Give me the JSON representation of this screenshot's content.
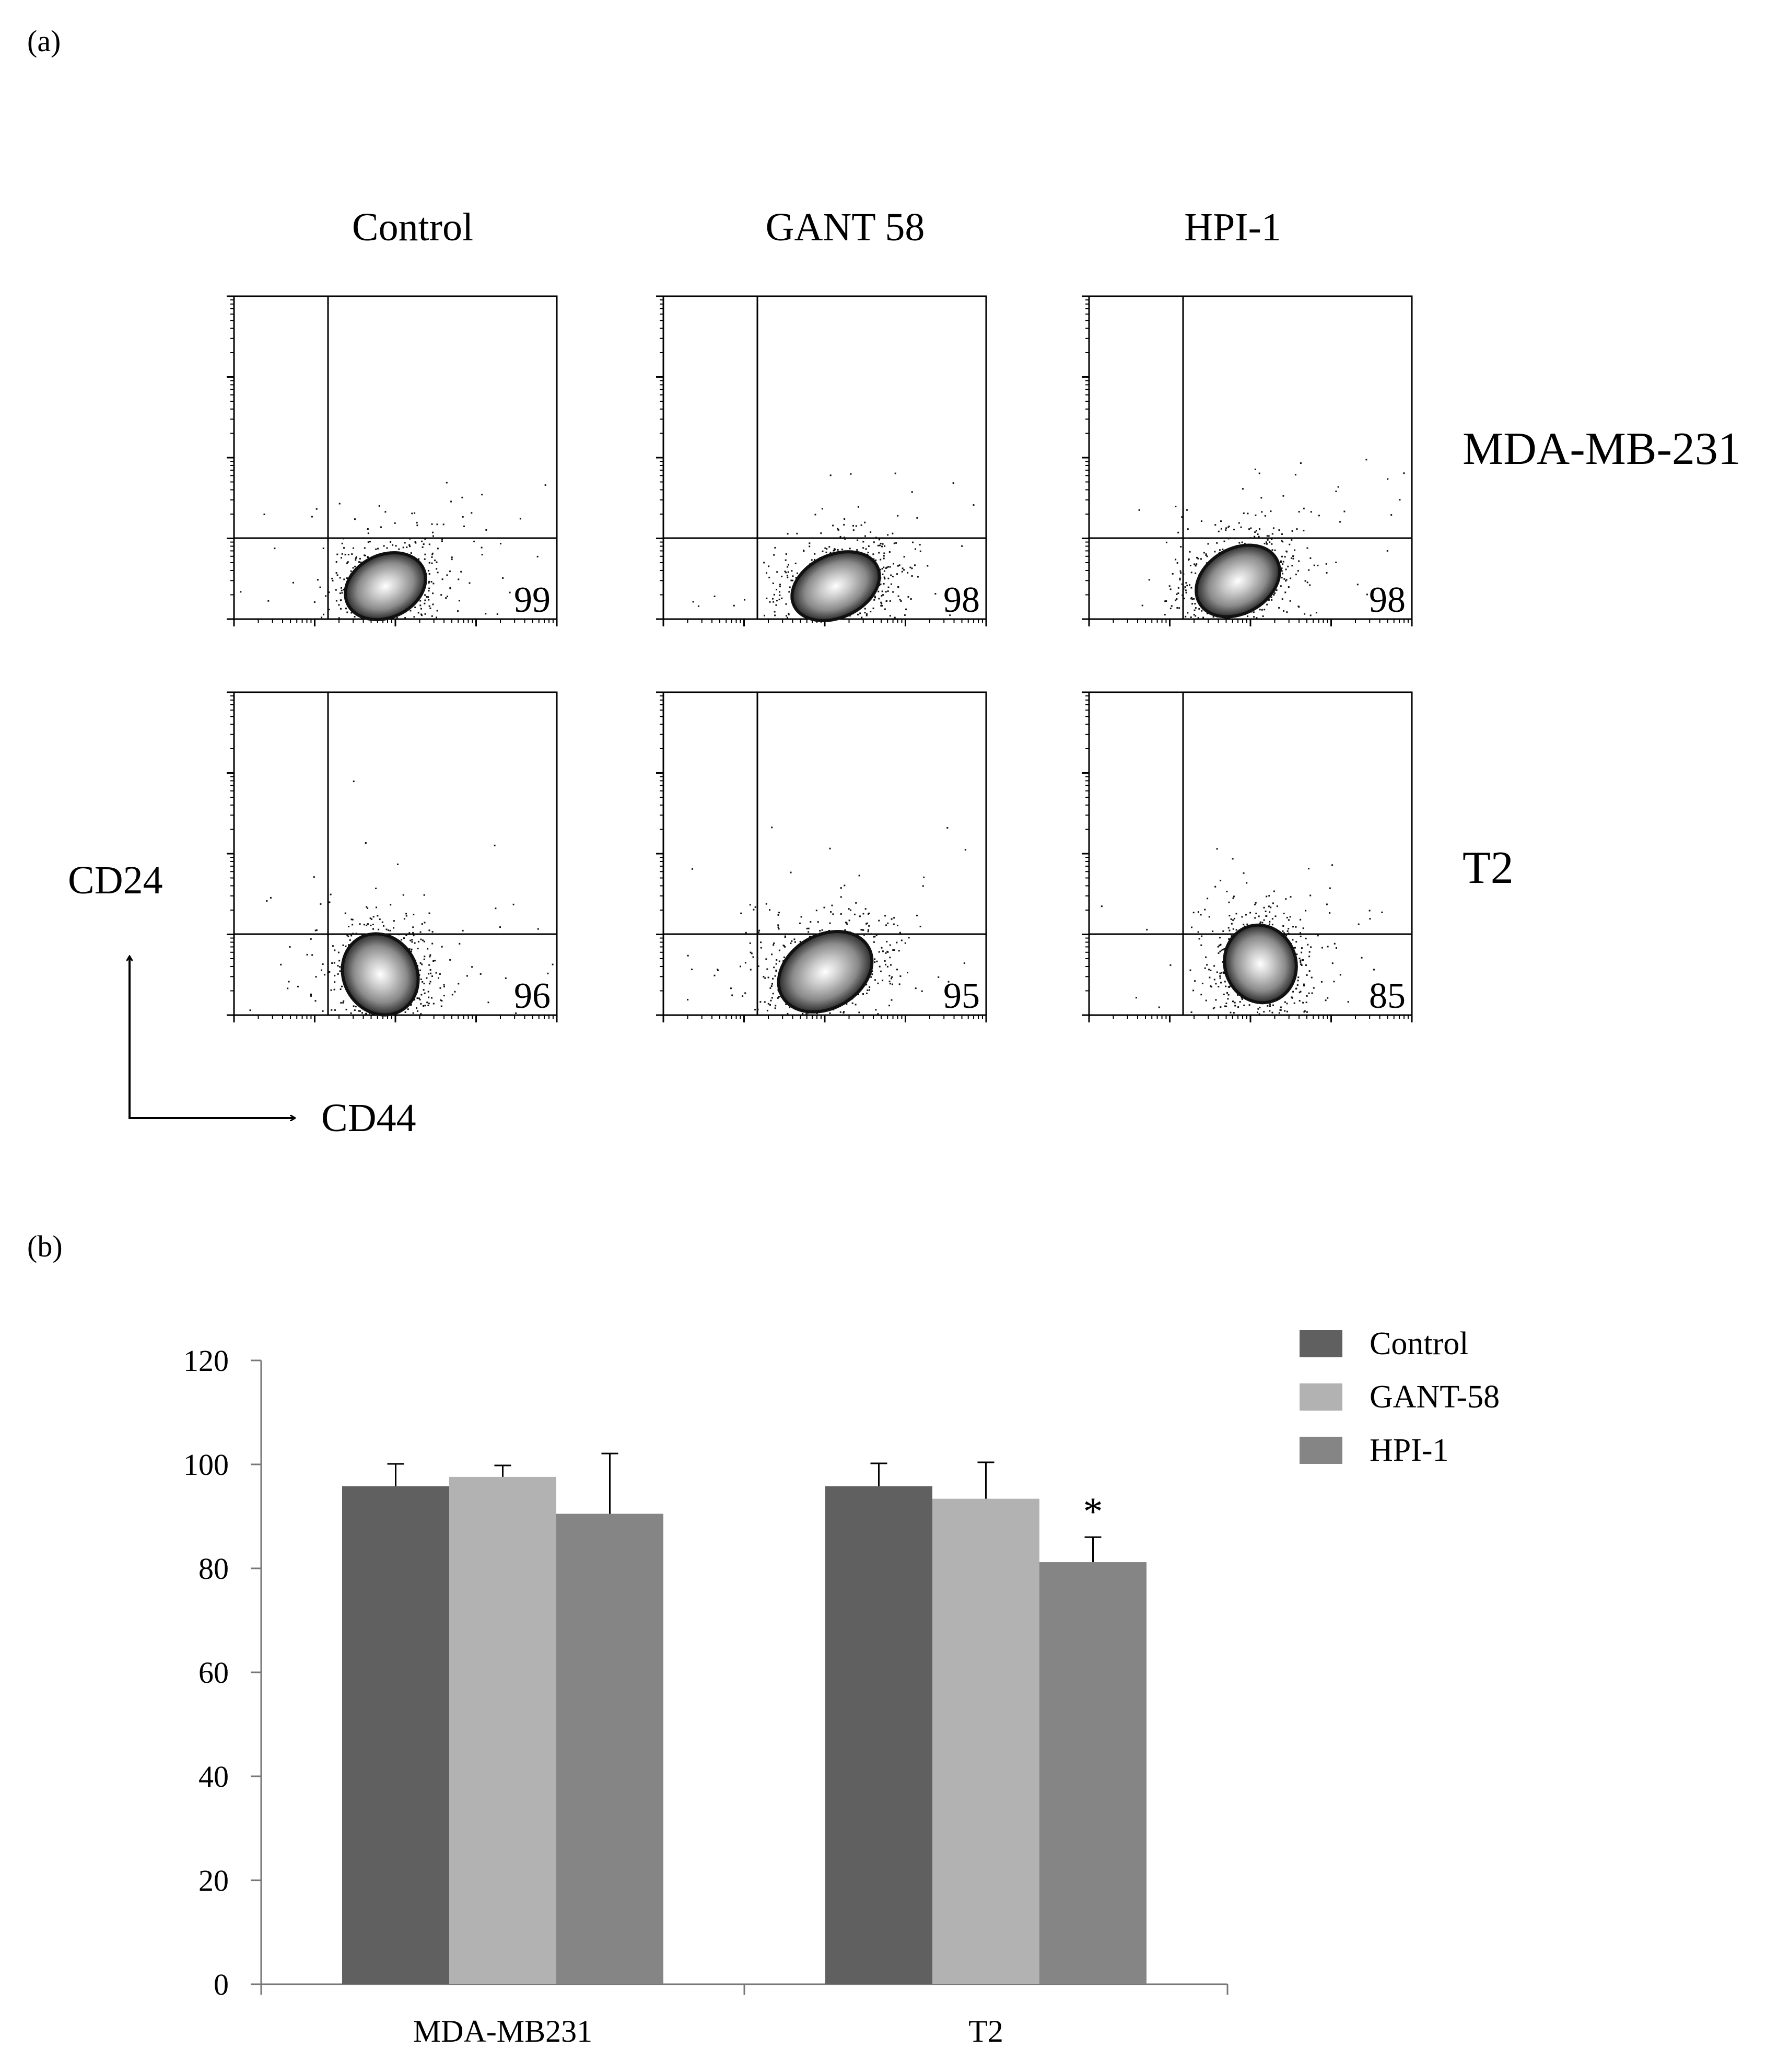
{
  "panel_labels": {
    "a": "(a)",
    "b": "(b)"
  },
  "flow": {
    "columns": [
      "Control",
      "GANT 58",
      "HPI-1"
    ],
    "rows": [
      "MDA-MB-231",
      "T2"
    ],
    "y_axis_label": "CD24",
    "x_axis_label": "CD44",
    "quadrant_values": [
      [
        "99",
        "98",
        "98"
      ],
      [
        "96",
        "95",
        "85"
      ]
    ]
  },
  "chart_data": {
    "type": "bar",
    "title": "",
    "xlabel": "",
    "ylabel": "",
    "categories": [
      "MDA-MB231",
      "T2"
    ],
    "series": [
      {
        "name": "Control",
        "values": [
          95.8,
          95.8
        ],
        "errors": [
          4.3,
          4.4
        ],
        "color": "#606060"
      },
      {
        "name": "GANT-58",
        "values": [
          97.6,
          93.4
        ],
        "errors": [
          2.2,
          7.0
        ],
        "color": "#b2b2b2"
      },
      {
        "name": "HPI-1",
        "values": [
          90.5,
          81.2
        ],
        "errors": [
          11.6,
          4.8
        ],
        "color": "#858585"
      }
    ],
    "ylim": [
      0,
      120
    ],
    "yticks": [
      0,
      20,
      40,
      60,
      80,
      100,
      120
    ],
    "grid": false,
    "legend": "top-right",
    "annotations": [
      {
        "category": "T2",
        "series": "HPI-1",
        "text": "*"
      }
    ]
  }
}
